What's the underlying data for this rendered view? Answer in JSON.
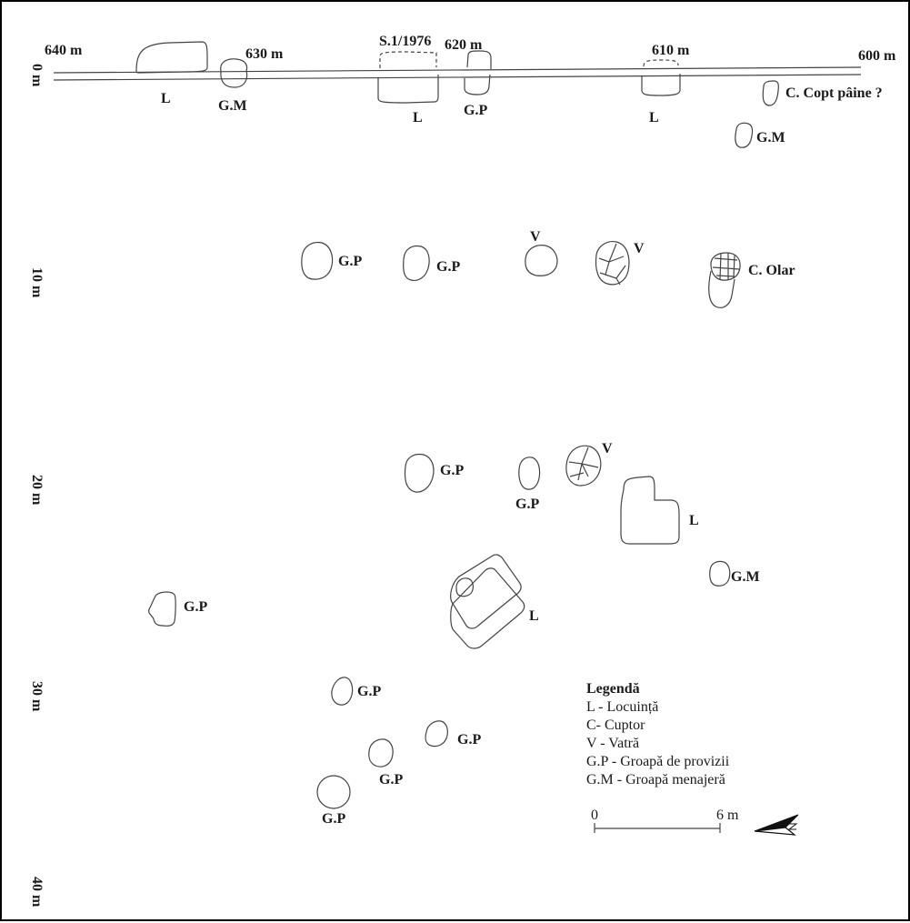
{
  "distances_top": [
    "640 m",
    "630 m",
    "620 m",
    "610 m",
    "600 m"
  ],
  "section_label": "S.1/1976",
  "depth_labels": [
    "0 m",
    "10 m",
    "20 m",
    "30 m",
    "40 m"
  ],
  "features": {
    "L": "L",
    "GM": "G.M",
    "GP": "G.P",
    "V": "V",
    "C_copt": "C. Copt pâine ?",
    "C_olar": "C. Olar"
  },
  "legend": {
    "title": "Legendă",
    "items": [
      "L - Locuință",
      "C- Cuptor",
      "V - Vatră",
      "G.P - Groapă de provizii",
      "G.M - Groapă menajeră"
    ],
    "scale_start": "0",
    "scale_end": "6 m"
  }
}
